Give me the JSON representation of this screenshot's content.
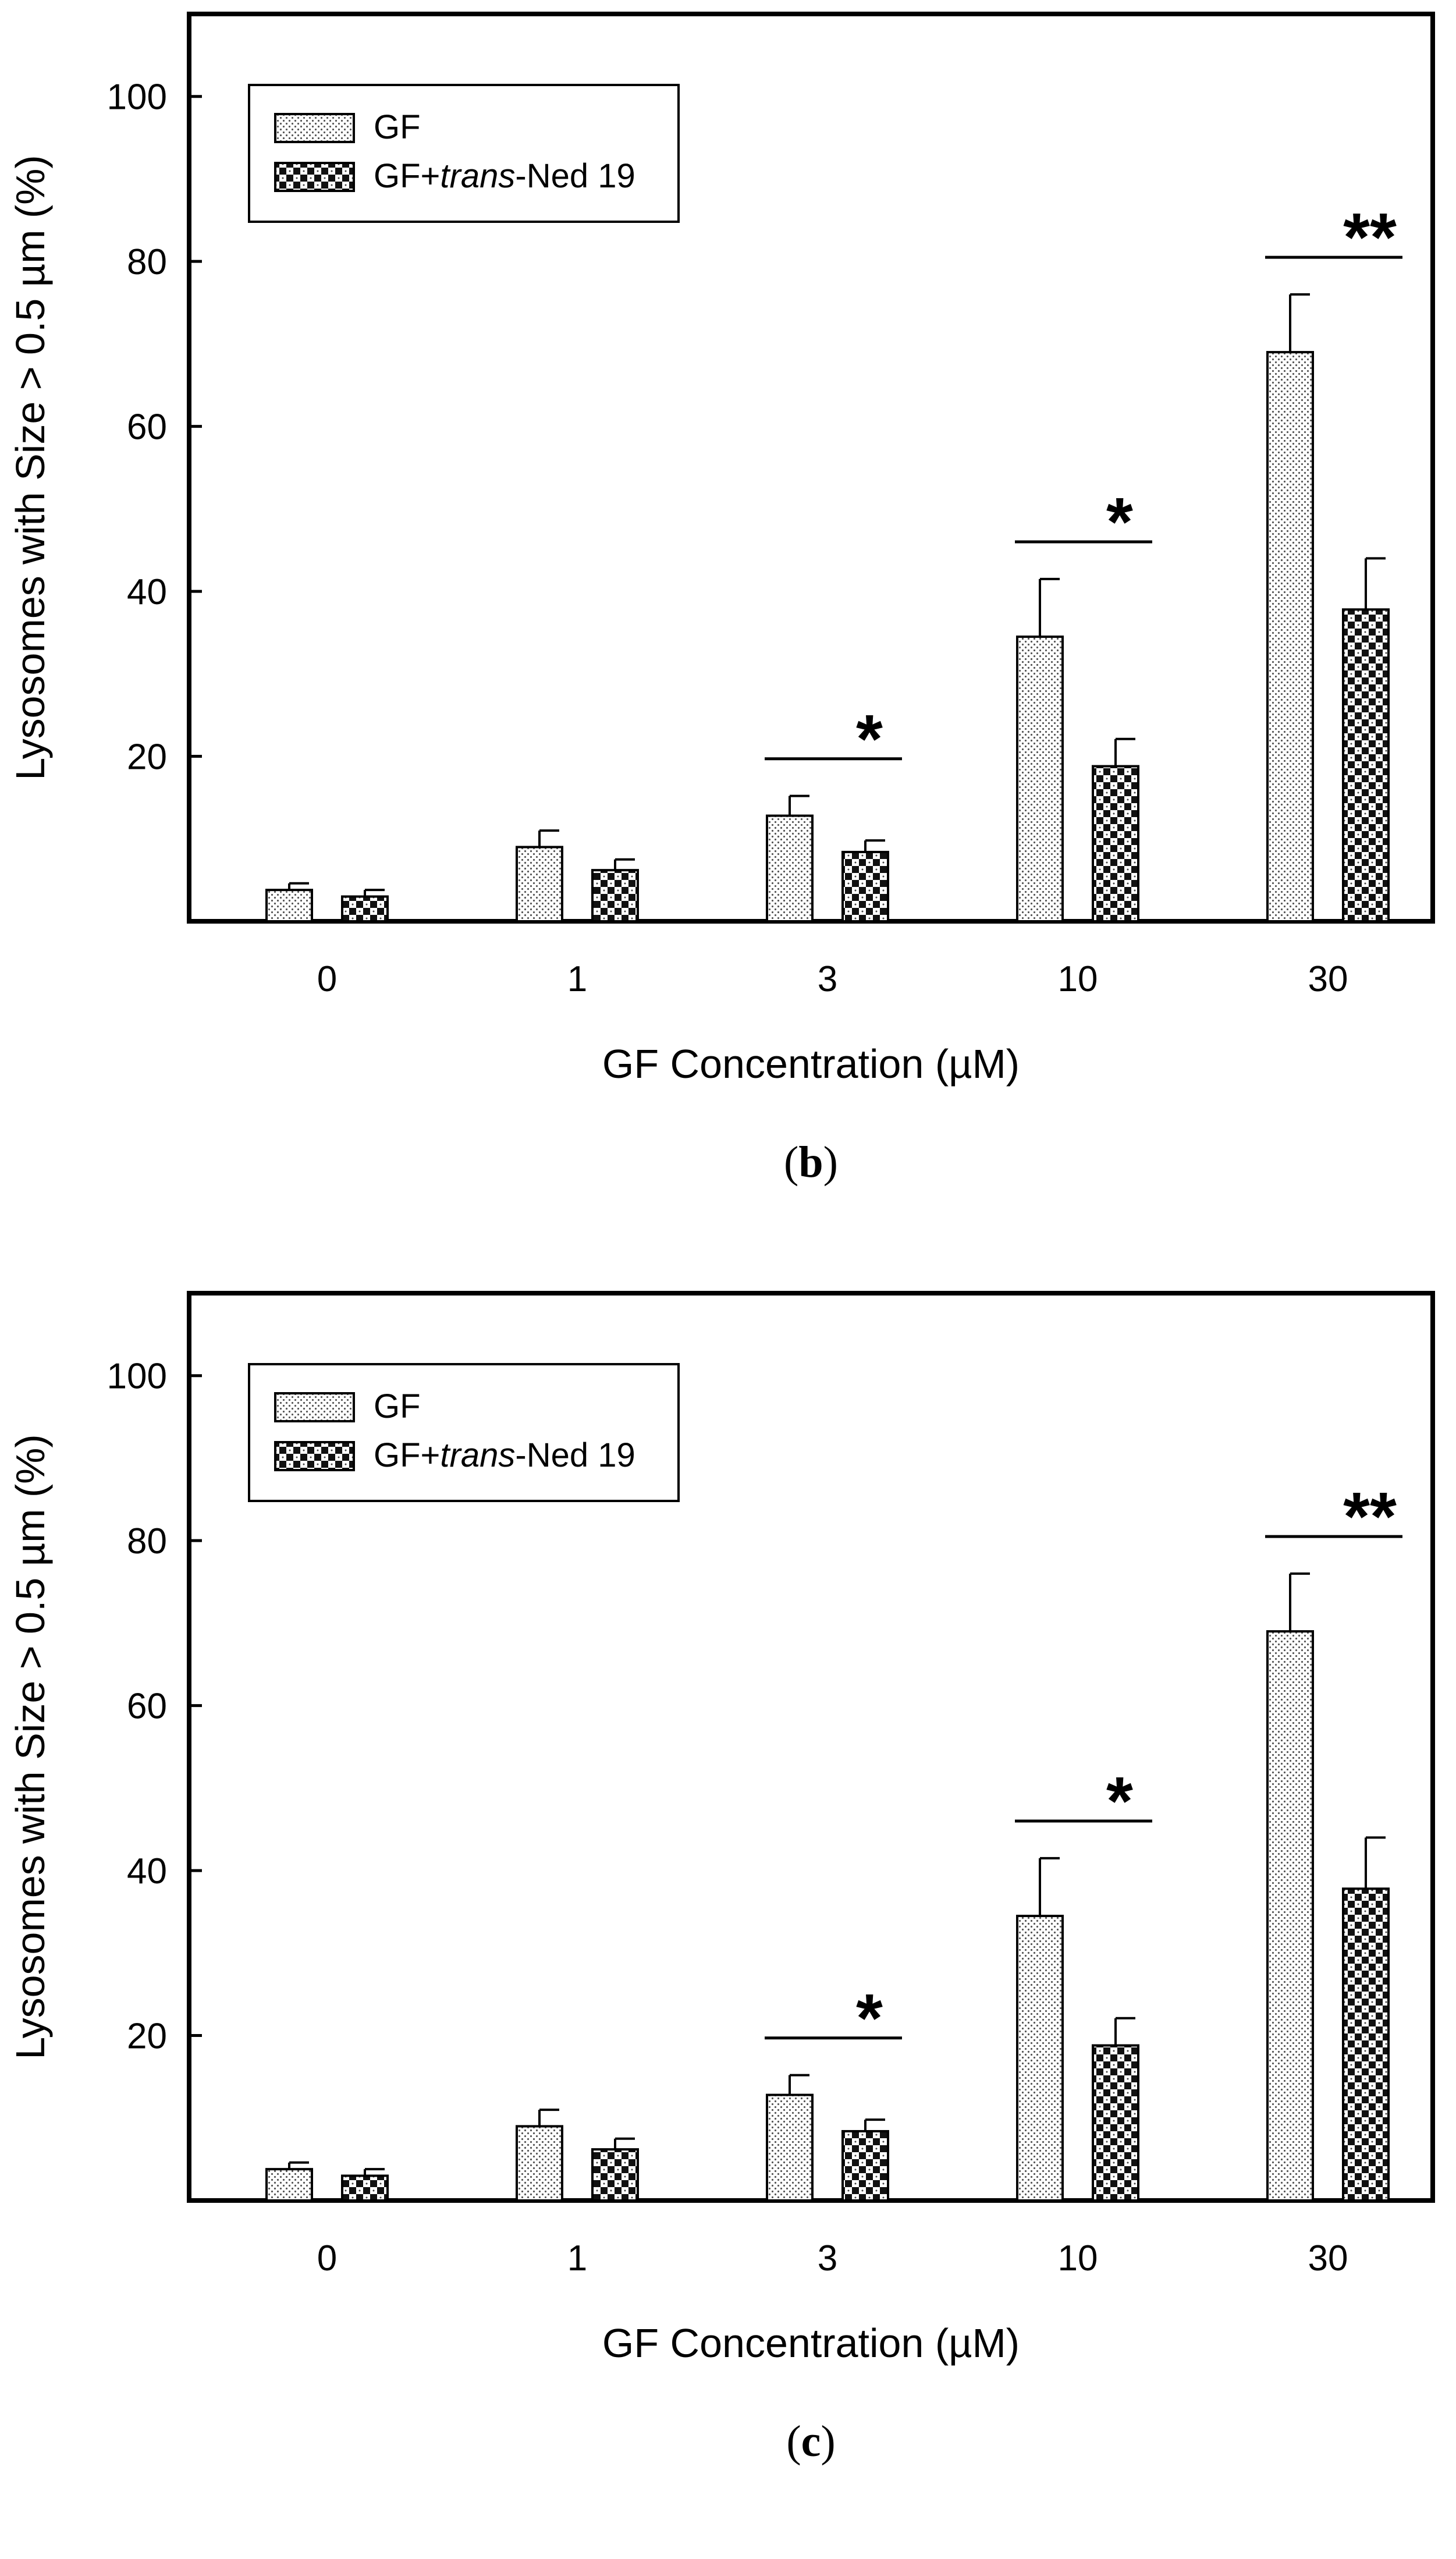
{
  "chart_data": [
    {
      "type": "bar",
      "panel_label": "b",
      "title": "",
      "xlabel": "GF Concentration (µM)",
      "ylabel": "Lysosomes with Size > 0.5 µm (%)",
      "ylim": [
        0,
        110
      ],
      "yticks": [
        20,
        40,
        60,
        80,
        100
      ],
      "categories": [
        "0",
        "1",
        "3",
        "10",
        "30"
      ],
      "series": [
        {
          "name": "GF",
          "legend_label": "GF",
          "legend_suffix": "",
          "pattern": "dots",
          "values": [
            3.8,
            9,
            12.8,
            34.5,
            69
          ],
          "errors": [
            0.8,
            2.0,
            2.4,
            7.0,
            7.0
          ]
        },
        {
          "name": "GF+trans-Ned 19",
          "legend_label": "GF+",
          "legend_italic": "trans",
          "legend_suffix": "-Ned 19",
          "pattern": "checker",
          "values": [
            3.0,
            6.2,
            8.4,
            18.8,
            37.8
          ],
          "errors": [
            0.8,
            1.3,
            1.4,
            3.3,
            6.2
          ]
        }
      ],
      "significance": [
        {
          "category": "3",
          "marker": "*"
        },
        {
          "category": "10",
          "marker": "*"
        },
        {
          "category": "30",
          "marker": "**"
        }
      ],
      "legend_position": "top-left"
    },
    {
      "type": "bar",
      "panel_label": "c",
      "title": "",
      "xlabel": "GF Concentration (µM)",
      "ylabel": "Lysosomes with Size > 0.5 µm (%)",
      "ylim": [
        0,
        110
      ],
      "yticks": [
        20,
        40,
        60,
        80,
        100
      ],
      "categories": [
        "0",
        "1",
        "3",
        "10",
        "30"
      ],
      "series": [
        {
          "name": "GF",
          "legend_label": "GF",
          "legend_suffix": "",
          "pattern": "dots",
          "values": [
            3.8,
            9,
            12.8,
            34.5,
            69
          ],
          "errors": [
            0.8,
            2.0,
            2.4,
            7.0,
            7.0
          ]
        },
        {
          "name": "GF+trans-Ned 19",
          "legend_label": "GF+",
          "legend_italic": "trans",
          "legend_suffix": "-Ned 19",
          "pattern": "checker",
          "values": [
            3.0,
            6.2,
            8.4,
            18.8,
            37.8
          ],
          "errors": [
            0.8,
            1.3,
            1.4,
            3.3,
            6.2
          ]
        }
      ],
      "significance": [
        {
          "category": "3",
          "marker": "*"
        },
        {
          "category": "10",
          "marker": "*"
        },
        {
          "category": "30",
          "marker": "**"
        }
      ],
      "legend_position": "top-left"
    }
  ]
}
